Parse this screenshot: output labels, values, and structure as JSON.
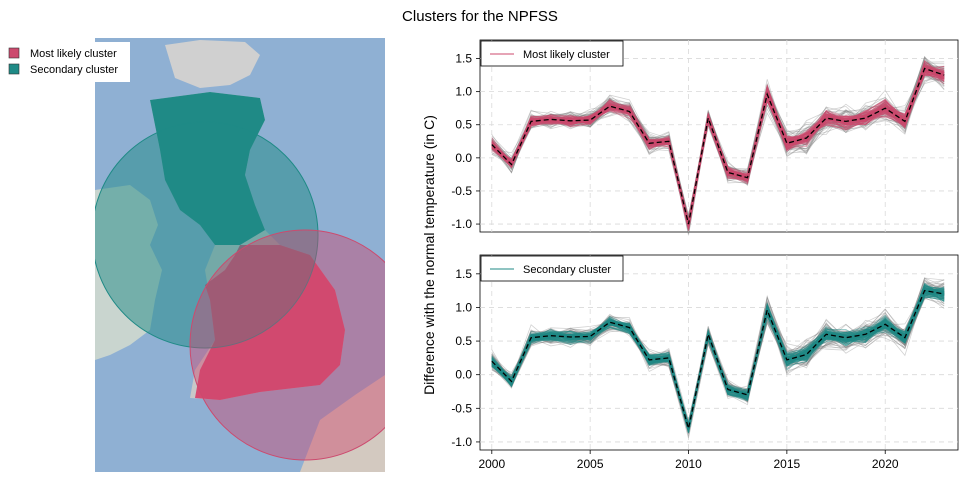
{
  "title": "Clusters for the NPFSS",
  "map_legend": {
    "items": [
      {
        "label": "Most likely cluster",
        "color": "#cc4a6e"
      },
      {
        "label": "Secondary cluster",
        "color": "#1f8a86"
      }
    ]
  },
  "chart_data": [
    {
      "type": "line",
      "panel": "top",
      "legend": "Most likely cluster",
      "highlight_color": "#cc4a6e",
      "background_color": "#7f7f7f",
      "reference_style": "dashed",
      "ylabel": "Difference with the normal temperature (in C)",
      "ylim": [
        -1.12,
        1.78
      ],
      "yticks": [
        "-1.0",
        "-0.5",
        "0.0",
        "0.5",
        "1.0",
        "1.5"
      ],
      "x": [
        2000,
        2001,
        2002,
        2003,
        2004,
        2005,
        2006,
        2007,
        2008,
        2009,
        2010,
        2011,
        2012,
        2013,
        2014,
        2015,
        2016,
        2017,
        2018,
        2019,
        2020,
        2021,
        2022,
        2023
      ],
      "series": [
        {
          "values": [
            0.2,
            -0.1,
            0.55,
            0.58,
            0.56,
            0.57,
            0.78,
            0.7,
            0.22,
            0.25,
            -1.0,
            0.6,
            -0.22,
            -0.3,
            0.96,
            0.22,
            0.3,
            0.6,
            0.55,
            0.6,
            0.75,
            0.55,
            1.35,
            1.25
          ]
        }
      ]
    },
    {
      "type": "line",
      "panel": "bottom",
      "legend": "Secondary cluster",
      "highlight_color": "#1f8a86",
      "background_color": "#7f7f7f",
      "reference_style": "dashed",
      "ylim": [
        -1.12,
        1.78
      ],
      "yticks": [
        "-1.0",
        "-0.5",
        "0.0",
        "0.5",
        "1.0",
        "1.5"
      ],
      "xticks": [
        "2000",
        "2005",
        "2010",
        "2015",
        "2020"
      ],
      "x": [
        2000,
        2001,
        2002,
        2003,
        2004,
        2005,
        2006,
        2007,
        2008,
        2009,
        2010,
        2011,
        2012,
        2013,
        2014,
        2015,
        2016,
        2017,
        2018,
        2019,
        2020,
        2021,
        2022,
        2023
      ],
      "series": [
        {
          "values": [
            0.2,
            -0.1,
            0.55,
            0.58,
            0.56,
            0.57,
            0.78,
            0.7,
            0.22,
            0.25,
            -0.8,
            0.6,
            -0.22,
            -0.3,
            0.96,
            0.22,
            0.3,
            0.6,
            0.55,
            0.6,
            0.75,
            0.55,
            1.25,
            1.2
          ]
        }
      ]
    }
  ]
}
